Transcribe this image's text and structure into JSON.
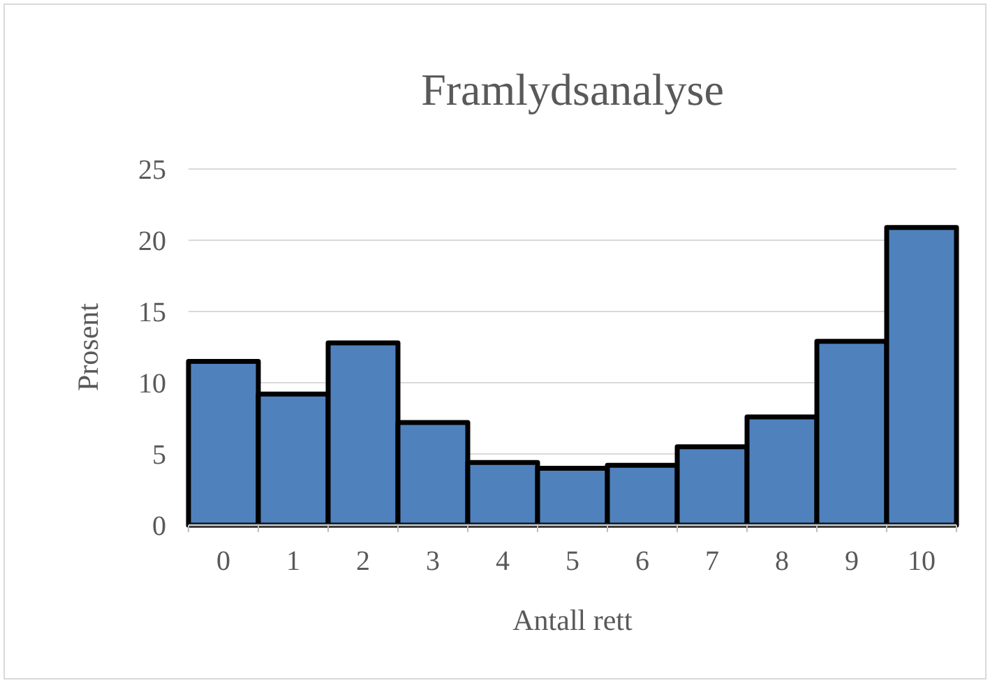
{
  "chart_data": {
    "type": "bar",
    "title": "Framlydsanalyse",
    "xlabel": "Antall rett",
    "ylabel": "Prosent",
    "categories": [
      "0",
      "1",
      "2",
      "3",
      "4",
      "5",
      "6",
      "7",
      "8",
      "9",
      "10"
    ],
    "values": [
      11.5,
      9.2,
      12.8,
      7.2,
      4.4,
      4.0,
      4.2,
      5.5,
      7.6,
      12.9,
      20.9
    ],
    "color": "#4f81bd",
    "ylim": [
      0,
      25
    ],
    "yticks": [
      0,
      5,
      10,
      15,
      20,
      25
    ],
    "grid": "y"
  }
}
